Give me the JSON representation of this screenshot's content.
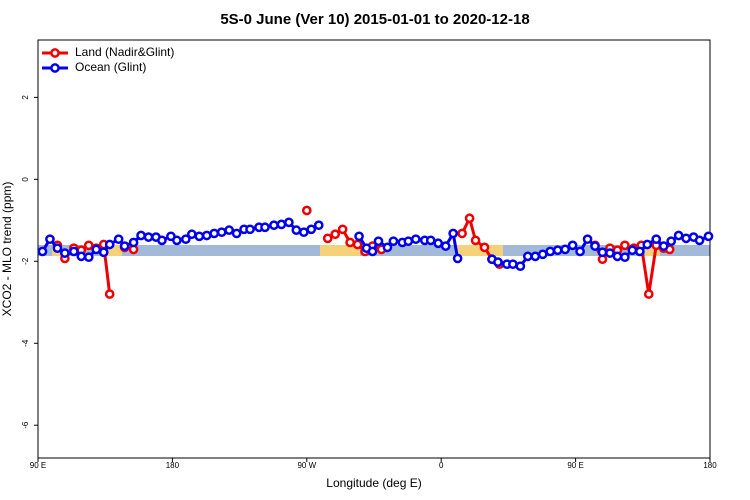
{
  "chart_data": {
    "type": "line",
    "title": "5S-0 June (Ver 10)   2015-01-01 to 2020-12-18",
    "xlabel": "Longitude (deg E)",
    "ylabel": "XCO2 - MLO trend (ppm)",
    "xlim": [
      90,
      540
    ],
    "xticks": [
      {
        "value": 90,
        "label": "90 E"
      },
      180,
      {
        "value": 270,
        "label": "90 W"
      },
      {
        "value": 360,
        "label": "0"
      },
      {
        "value": 450,
        "label": "90 E"
      },
      {
        "value": 540,
        "label": "180"
      }
    ],
    "ylim": [
      -6.8,
      3.4
    ],
    "yticks": [
      -6,
      -4,
      -2,
      0,
      2
    ],
    "legend": "top-left",
    "series": [
      {
        "name": "Land (Nadir&Glint)",
        "color": "#ee0000",
        "x": [
          103,
          108,
          114,
          119,
          124,
          129,
          134,
          138,
          null,
          148,
          154,
          null,
          270,
          null,
          284,
          289,
          294,
          299,
          304,
          309,
          314,
          320,
          null,
          374,
          379,
          383,
          389,
          394,
          399,
          null,
          463,
          468,
          473,
          478,
          483,
          489,
          494,
          499,
          504,
          509,
          513
        ],
        "values": [
          -1.61,
          -1.93,
          -1.68,
          -1.73,
          -1.61,
          -1.68,
          -1.59,
          -2.8,
          null,
          -1.66,
          -1.71,
          null,
          -0.76,
          null,
          -1.44,
          -1.34,
          -1.22,
          -1.54,
          -1.59,
          -1.76,
          -1.63,
          -1.71,
          null,
          -1.32,
          -0.95,
          -1.49,
          -1.66,
          -1.95,
          -2.07,
          null,
          -1.61,
          -1.95,
          -1.68,
          -1.73,
          -1.61,
          -1.68,
          -1.61,
          -2.8,
          -1.61,
          -1.68,
          -1.71
        ]
      },
      {
        "name": "Ocean (Glint)",
        "color": "#0000ee",
        "x": [
          93,
          98,
          103,
          108,
          114,
          119,
          124,
          129,
          134,
          138,
          144,
          148,
          154,
          159,
          164,
          169,
          173,
          179,
          183,
          189,
          193,
          198,
          203,
          208,
          213,
          218,
          223,
          228,
          232,
          238,
          242,
          248,
          253,
          258,
          263,
          268,
          273,
          278,
          null,
          305,
          310,
          314,
          318,
          324,
          328,
          334,
          338,
          343,
          349,
          353,
          358,
          363,
          368,
          371,
          null,
          394,
          398,
          404,
          408,
          413,
          418,
          423,
          428,
          433,
          438,
          443,
          448,
          453,
          458,
          463,
          468,
          473,
          478,
          483,
          488,
          493,
          498,
          504,
          509,
          514,
          519,
          524,
          529,
          533,
          539
        ],
        "values": [
          -1.76,
          -1.46,
          -1.68,
          -1.8,
          -1.76,
          -1.88,
          -1.9,
          -1.71,
          -1.78,
          -1.59,
          -1.46,
          -1.63,
          -1.54,
          -1.37,
          -1.41,
          -1.41,
          -1.49,
          -1.39,
          -1.49,
          -1.46,
          -1.34,
          -1.39,
          -1.37,
          -1.32,
          -1.29,
          -1.24,
          -1.32,
          -1.22,
          -1.22,
          -1.17,
          -1.17,
          -1.12,
          -1.1,
          -1.05,
          -1.24,
          -1.29,
          -1.22,
          -1.12,
          null,
          -1.39,
          -1.68,
          -1.76,
          -1.51,
          -1.66,
          -1.51,
          -1.54,
          -1.51,
          -1.46,
          -1.49,
          -1.49,
          -1.56,
          -1.63,
          -1.32,
          -1.93,
          null,
          -1.95,
          -2.02,
          -2.07,
          -2.07,
          -2.12,
          -1.88,
          -1.88,
          -1.83,
          -1.76,
          -1.73,
          -1.71,
          -1.61,
          -1.76,
          -1.46,
          -1.63,
          -1.78,
          -1.8,
          -1.88,
          -1.9,
          -1.73,
          -1.76,
          -1.59,
          -1.46,
          -1.63,
          -1.51,
          -1.37,
          -1.44,
          -1.41,
          -1.49,
          -1.39
        ]
      }
    ]
  }
}
